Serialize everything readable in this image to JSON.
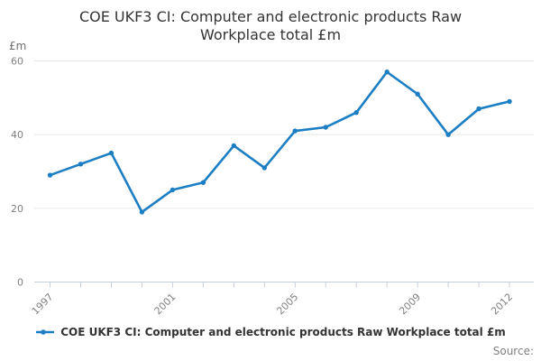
{
  "title": "COE UKF3 CI: Computer and electronic products Raw Workplace total £m",
  "legend": {
    "label": "COE UKF3 CI: Computer and electronic products Raw Workplace total £m",
    "marker": "line-with-dot-marker"
  },
  "source": {
    "label": "Source:"
  },
  "colors": {
    "line": "#1c7ec3",
    "grid": "#e6e6e6",
    "axis": "#c5cfdb",
    "tick_label": "#7f7f7f",
    "unit_label": "#6e6e6e",
    "title_text": "#333333",
    "legend_text": "#333333",
    "source_text": "#7f7f7f"
  },
  "chart_data": {
    "type": "line",
    "title": "COE UKF3 CI: Computer and electronic products Raw Workplace total £m",
    "xlabel": "",
    "ylabel": "£m",
    "x": [
      1997,
      1998,
      1999,
      2000,
      2001,
      2002,
      2003,
      2004,
      2005,
      2006,
      2007,
      2008,
      2009,
      2010,
      2011,
      2012
    ],
    "values": [
      29,
      32,
      35,
      19,
      25,
      27,
      37,
      31,
      41,
      42,
      46,
      57,
      51,
      40,
      47,
      49
    ],
    "ylim": [
      0,
      60
    ],
    "yticks": [
      0,
      20,
      40,
      60
    ],
    "xtick_labels": [
      1997,
      2001,
      2005,
      2009,
      2012
    ],
    "grid": true,
    "legend_position": "bottom"
  }
}
